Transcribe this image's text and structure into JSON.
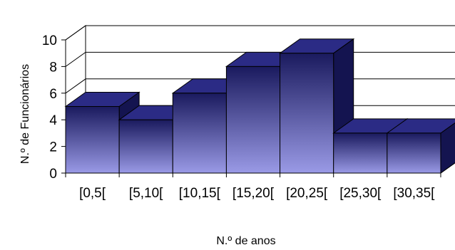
{
  "chart_data": {
    "type": "bar",
    "style": "3d-histogram",
    "categories": [
      "[0,5[",
      "[5,10[",
      "[10,15[",
      "[15,20[",
      "[20,25[",
      "[25,30[",
      "[30,35["
    ],
    "values": [
      5,
      4,
      6,
      8,
      9,
      3,
      3
    ],
    "xlabel": "N.º de anos",
    "ylabel": "N.º de Funcionários",
    "ylim": [
      0,
      10
    ],
    "yticks": [
      0,
      2,
      4,
      6,
      8,
      10
    ],
    "grid": true,
    "legend": "none"
  },
  "colors": {
    "bar_top": "#1a1a5e",
    "bar_bottom": "#9a9ae6",
    "bar_top_face": "#2b2b85",
    "bar_side": "#141450",
    "floor": "#b0b0b0",
    "wall": "#ffffff",
    "gridline": "#000000"
  }
}
